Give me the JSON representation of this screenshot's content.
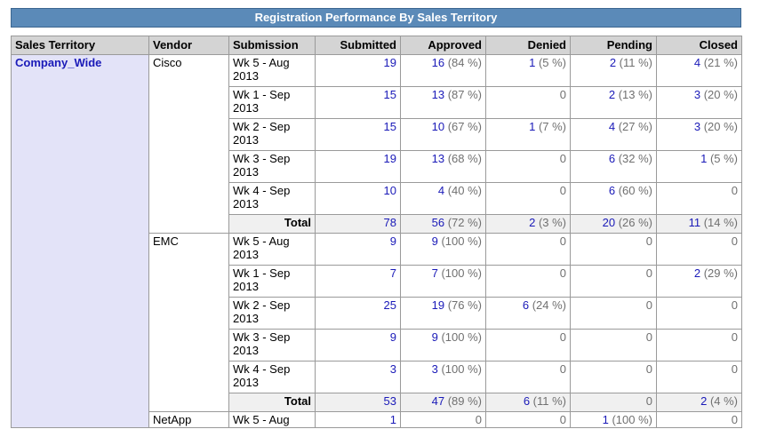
{
  "title": "Registration Performance By Sales Territory",
  "columns": [
    "Sales Territory",
    "Vendor",
    "Submission",
    "Submitted",
    "Approved",
    "Denied",
    "Pending",
    "Closed"
  ],
  "territory": "Company_Wide",
  "total_label": "Total",
  "vendors": [
    {
      "name": "Cisco",
      "rows": [
        {
          "week": "Wk 5 - Aug 2013",
          "submitted": "19",
          "approved": [
            "16",
            "(84 %)"
          ],
          "denied": [
            "1",
            "(5 %)"
          ],
          "pending": [
            "2",
            "(11 %)"
          ],
          "closed": [
            "4",
            "(21 %)"
          ]
        },
        {
          "week": "Wk 1 - Sep 2013",
          "submitted": "15",
          "approved": [
            "13",
            "(87 %)"
          ],
          "denied": [
            "0",
            ""
          ],
          "pending": [
            "2",
            "(13 %)"
          ],
          "closed": [
            "3",
            "(20 %)"
          ]
        },
        {
          "week": "Wk 2 - Sep 2013",
          "submitted": "15",
          "approved": [
            "10",
            "(67 %)"
          ],
          "denied": [
            "1",
            "(7 %)"
          ],
          "pending": [
            "4",
            "(27 %)"
          ],
          "closed": [
            "3",
            "(20 %)"
          ]
        },
        {
          "week": "Wk 3 - Sep 2013",
          "submitted": "19",
          "approved": [
            "13",
            "(68 %)"
          ],
          "denied": [
            "0",
            ""
          ],
          "pending": [
            "6",
            "(32 %)"
          ],
          "closed": [
            "1",
            "(5 %)"
          ]
        },
        {
          "week": "Wk 4 - Sep 2013",
          "submitted": "10",
          "approved": [
            "4",
            "(40 %)"
          ],
          "denied": [
            "0",
            ""
          ],
          "pending": [
            "6",
            "(60 %)"
          ],
          "closed": [
            "0",
            ""
          ]
        }
      ],
      "total": {
        "submitted": "78",
        "approved": [
          "56",
          "(72 %)"
        ],
        "denied": [
          "2",
          "(3 %)"
        ],
        "pending": [
          "20",
          "(26 %)"
        ],
        "closed": [
          "11",
          "(14 %)"
        ]
      }
    },
    {
      "name": "EMC",
      "rows": [
        {
          "week": "Wk 5 - Aug 2013",
          "submitted": "9",
          "approved": [
            "9",
            "(100 %)"
          ],
          "denied": [
            "0",
            ""
          ],
          "pending": [
            "0",
            ""
          ],
          "closed": [
            "0",
            ""
          ]
        },
        {
          "week": "Wk 1 - Sep 2013",
          "submitted": "7",
          "approved": [
            "7",
            "(100 %)"
          ],
          "denied": [
            "0",
            ""
          ],
          "pending": [
            "0",
            ""
          ],
          "closed": [
            "2",
            "(29 %)"
          ]
        },
        {
          "week": "Wk 2 - Sep 2013",
          "submitted": "25",
          "approved": [
            "19",
            "(76 %)"
          ],
          "denied": [
            "6",
            "(24 %)"
          ],
          "pending": [
            "0",
            ""
          ],
          "closed": [
            "0",
            ""
          ]
        },
        {
          "week": "Wk 3 - Sep 2013",
          "submitted": "9",
          "approved": [
            "9",
            "(100 %)"
          ],
          "denied": [
            "0",
            ""
          ],
          "pending": [
            "0",
            ""
          ],
          "closed": [
            "0",
            ""
          ]
        },
        {
          "week": "Wk 4 - Sep 2013",
          "submitted": "3",
          "approved": [
            "3",
            "(100 %)"
          ],
          "denied": [
            "0",
            ""
          ],
          "pending": [
            "0",
            ""
          ],
          "closed": [
            "0",
            ""
          ]
        }
      ],
      "total": {
        "submitted": "53",
        "approved": [
          "47",
          "(89 %)"
        ],
        "denied": [
          "6",
          "(11 %)"
        ],
        "pending": [
          "0",
          ""
        ],
        "closed": [
          "2",
          "(4 %)"
        ]
      }
    },
    {
      "name": "NetApp",
      "rows": [
        {
          "week": "Wk 5 - Aug",
          "submitted": "1",
          "approved": [
            "0",
            ""
          ],
          "denied": [
            "0",
            ""
          ],
          "pending": [
            "1",
            "(100 %)"
          ],
          "closed": [
            "0",
            ""
          ]
        }
      ]
    }
  ]
}
